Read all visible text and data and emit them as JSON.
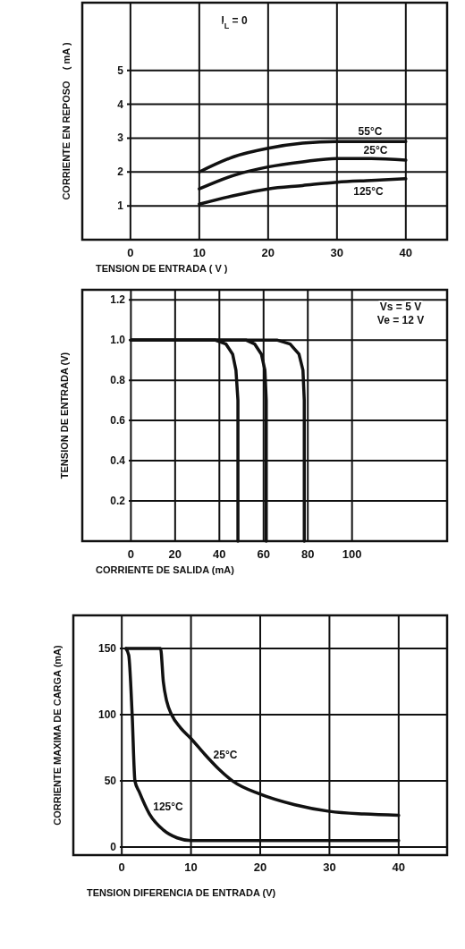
{
  "chart_data": [
    {
      "type": "line",
      "annotations": [
        "I$_{L}$ = 0"
      ],
      "xlabel": "TENSION DE  ENTRADA  ( V )",
      "ylabel": "CORRIENTE EN REPOSO    ( mA )",
      "xlim": [
        -7,
        46
      ],
      "ylim": [
        0,
        7
      ],
      "xticks": [
        0,
        10,
        20,
        30,
        40
      ],
      "yticks": [
        1,
        2,
        3,
        4,
        5
      ],
      "grid": true,
      "line_style": "solid",
      "series": [
        {
          "name": "55°C",
          "color": "#111111",
          "x": [
            10,
            15,
            20,
            25,
            30,
            35,
            40
          ],
          "values": [
            2.0,
            2.45,
            2.7,
            2.85,
            2.9,
            2.9,
            2.9
          ]
        },
        {
          "name": "25°C",
          "color": "#111111",
          "x": [
            10,
            15,
            20,
            25,
            30,
            35,
            40
          ],
          "values": [
            1.5,
            1.9,
            2.15,
            2.3,
            2.4,
            2.4,
            2.35
          ]
        },
        {
          "name": "125°C",
          "color": "#111111",
          "x": [
            10,
            15,
            20,
            25,
            30,
            35,
            40
          ],
          "values": [
            1.05,
            1.3,
            1.5,
            1.6,
            1.7,
            1.75,
            1.8
          ]
        }
      ]
    },
    {
      "type": "line",
      "annotations": [
        "Vs = 5 V",
        "Ve = 12 V"
      ],
      "xlabel": "CORRIENTE DE SALIDA (mA)",
      "ylabel": "TENSION DE ENTRADA (V)",
      "xlim": [
        -22,
        143
      ],
      "ylim": [
        0,
        1.25
      ],
      "xticks": [
        0,
        20,
        40,
        60,
        80,
        100
      ],
      "yticks": [
        0.2,
        0.4,
        0.6,
        {
          "value": 0.8,
          "label": "0.8"
        },
        {
          "value": 1,
          "label": "1.0"
        },
        1.2
      ],
      "grid": true,
      "line_style": "solid",
      "series": [
        {
          "color": "#111111",
          "x": [
            0,
            38,
            43,
            46,
            47.5,
            48.4,
            48.4
          ],
          "values": [
            1,
            1,
            0.98,
            0.93,
            0.85,
            0.7,
            0
          ]
        },
        {
          "color": "#111111",
          "x": [
            0,
            52,
            56,
            59,
            60.6,
            61.2,
            61.2
          ],
          "values": [
            1,
            1,
            0.98,
            0.93,
            0.85,
            0.7,
            0
          ]
        },
        {
          "color": "#111111",
          "x": [
            0,
            66,
            72,
            76,
            77.8,
            78.4,
            78.4
          ],
          "values": [
            1,
            1,
            0.98,
            0.93,
            0.85,
            0.7,
            0
          ]
        }
      ]
    },
    {
      "type": "line",
      "xlabel": "TENSION DIFERENCIA DE ENTRADA (V)",
      "ylabel": "CORRIENTE MAXIMA DE CARGA (mA)",
      "xlim": [
        -7,
        47
      ],
      "ylim": [
        -6,
        175
      ],
      "xticks": [
        0,
        10,
        20,
        30,
        40
      ],
      "yticks": [
        0,
        50,
        100,
        150
      ],
      "grid": true,
      "line_style": "solid",
      "series": [
        {
          "name": "25°C",
          "color": "#111111",
          "x": [
            0.6,
            5.6,
            6.0,
            6.5,
            7.2,
            8.5,
            10,
            12,
            14,
            16,
            20,
            25,
            30,
            35,
            40
          ],
          "values": [
            150,
            150,
            125,
            110,
            100,
            90,
            82,
            70,
            59,
            50,
            40,
            32,
            27,
            25,
            24
          ]
        },
        {
          "name": "125°C",
          "color": "#111111",
          "x": [
            0.6,
            1,
            1.5,
            1.9,
            2.5,
            4,
            6,
            8,
            10,
            20,
            40
          ],
          "values": [
            150,
            145,
            100,
            50,
            42,
            25,
            13,
            7,
            5,
            5,
            5
          ]
        }
      ]
    }
  ]
}
